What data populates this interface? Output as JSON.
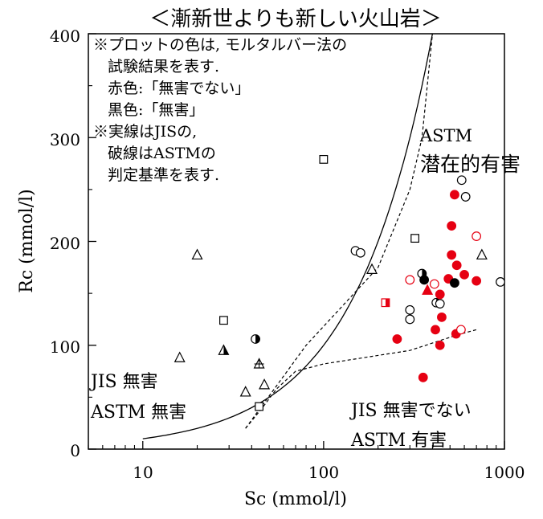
{
  "chart_data": {
    "type": "scatter",
    "title": "＜漸新世よりも新しい火山岩＞",
    "xlabel": "Sc (mmol/l)",
    "ylabel": "Rc (mmol/l)",
    "x_scale": "log",
    "xlim": [
      5,
      1000
    ],
    "ylim": [
      0,
      400
    ],
    "x_ticks": [
      "10",
      "100",
      "1000"
    ],
    "y_ticks": [
      "0",
      "100",
      "200",
      "300",
      "400"
    ],
    "notes": [
      "※プロットの色は, モルタルバー法の",
      "試験結果を表す.",
      "赤色:「無害でない」",
      "黒色:「無害」",
      "※実線はJISの,",
      "破線はASTMの",
      "判定基準を表す."
    ],
    "region_labels": {
      "jis_harmless": "JIS  無害",
      "astm_harmless": "ASTM  無害",
      "jis_not_harmless": "JIS  無害でない",
      "astm_harmful": "ASTM  有害",
      "astm": "ASTM",
      "astm_potential": "潜在的有害"
    },
    "colors": {
      "red": "#e60012",
      "black": "#000000"
    },
    "jis_line_ends": [
      [
        10,
        10
      ],
      [
        400,
        400
      ]
    ],
    "astm_line": [
      [
        37,
        20
      ],
      [
        45,
        38
      ],
      [
        55,
        58
      ],
      [
        70,
        75
      ],
      [
        100,
        82
      ],
      [
        300,
        95
      ],
      [
        550,
        110
      ],
      [
        700,
        115
      ]
    ],
    "astm_upper": [
      [
        37,
        20
      ],
      [
        80,
        100
      ],
      [
        200,
        175
      ],
      [
        300,
        250
      ],
      [
        350,
        300
      ],
      [
        400,
        400
      ]
    ],
    "points": [
      {
        "x": 16,
        "y": 88,
        "shape": "triangle",
        "fill": "open",
        "color": "black"
      },
      {
        "x": 20,
        "y": 187,
        "shape": "triangle",
        "fill": "open",
        "color": "black"
      },
      {
        "x": 28,
        "y": 95,
        "shape": "triangle",
        "fill": "half",
        "color": "black"
      },
      {
        "x": 28,
        "y": 124,
        "shape": "square",
        "fill": "open",
        "color": "black"
      },
      {
        "x": 42,
        "y": 106,
        "shape": "circle",
        "fill": "half",
        "color": "black"
      },
      {
        "x": 44,
        "y": 82,
        "shape": "triangle",
        "fill": "cross",
        "color": "black"
      },
      {
        "x": 44,
        "y": 41,
        "shape": "square",
        "fill": "open",
        "color": "black"
      },
      {
        "x": 37,
        "y": 55,
        "shape": "triangle",
        "fill": "open",
        "color": "black"
      },
      {
        "x": 47,
        "y": 62,
        "shape": "triangle",
        "fill": "open",
        "color": "black"
      },
      {
        "x": 100,
        "y": 279,
        "shape": "square",
        "fill": "open",
        "color": "black"
      },
      {
        "x": 150,
        "y": 191,
        "shape": "circle",
        "fill": "open",
        "color": "black"
      },
      {
        "x": 160,
        "y": 189,
        "shape": "circle",
        "fill": "open",
        "color": "black"
      },
      {
        "x": 185,
        "y": 173,
        "shape": "triangle",
        "fill": "open",
        "color": "black"
      },
      {
        "x": 220,
        "y": 141,
        "shape": "square",
        "fill": "half",
        "color": "red"
      },
      {
        "x": 300,
        "y": 163,
        "shape": "circle",
        "fill": "open",
        "color": "red"
      },
      {
        "x": 300,
        "y": 134,
        "shape": "circle",
        "fill": "open",
        "color": "black"
      },
      {
        "x": 300,
        "y": 125,
        "shape": "circle",
        "fill": "open",
        "color": "black"
      },
      {
        "x": 320,
        "y": 203,
        "shape": "square",
        "fill": "open",
        "color": "black"
      },
      {
        "x": 255,
        "y": 106,
        "shape": "circle",
        "fill": "filled",
        "color": "red"
      },
      {
        "x": 355,
        "y": 69,
        "shape": "circle",
        "fill": "filled",
        "color": "red"
      },
      {
        "x": 350,
        "y": 169,
        "shape": "circle",
        "fill": "half",
        "color": "black"
      },
      {
        "x": 360,
        "y": 163,
        "shape": "circle",
        "fill": "filled",
        "color": "black"
      },
      {
        "x": 375,
        "y": 153,
        "shape": "triangle",
        "fill": "filled",
        "color": "red"
      },
      {
        "x": 410,
        "y": 159,
        "shape": "circle",
        "fill": "open",
        "color": "red"
      },
      {
        "x": 420,
        "y": 141,
        "shape": "circle",
        "fill": "half",
        "color": "black"
      },
      {
        "x": 440,
        "y": 140,
        "shape": "circle",
        "fill": "open",
        "color": "black"
      },
      {
        "x": 440,
        "y": 149,
        "shape": "circle",
        "fill": "filled",
        "color": "red"
      },
      {
        "x": 450,
        "y": 127,
        "shape": "circle",
        "fill": "filled",
        "color": "red"
      },
      {
        "x": 415,
        "y": 115,
        "shape": "circle",
        "fill": "filled",
        "color": "red"
      },
      {
        "x": 440,
        "y": 100,
        "shape": "circle",
        "fill": "filled",
        "color": "red"
      },
      {
        "x": 490,
        "y": 164,
        "shape": "circle",
        "fill": "filled",
        "color": "red"
      },
      {
        "x": 510,
        "y": 215,
        "shape": "circle",
        "fill": "filled",
        "color": "red"
      },
      {
        "x": 510,
        "y": 187,
        "shape": "circle",
        "fill": "filled",
        "color": "red"
      },
      {
        "x": 530,
        "y": 160,
        "shape": "circle",
        "fill": "filled",
        "color": "black"
      },
      {
        "x": 530,
        "y": 245,
        "shape": "circle",
        "fill": "filled",
        "color": "red"
      },
      {
        "x": 545,
        "y": 177,
        "shape": "circle",
        "fill": "filled",
        "color": "red"
      },
      {
        "x": 540,
        "y": 111,
        "shape": "circle",
        "fill": "filled",
        "color": "red"
      },
      {
        "x": 575,
        "y": 115,
        "shape": "circle",
        "fill": "open",
        "color": "red"
      },
      {
        "x": 580,
        "y": 259,
        "shape": "circle",
        "fill": "open",
        "color": "black"
      },
      {
        "x": 600,
        "y": 168,
        "shape": "circle",
        "fill": "filled",
        "color": "red"
      },
      {
        "x": 610,
        "y": 243,
        "shape": "circle",
        "fill": "open",
        "color": "black"
      },
      {
        "x": 700,
        "y": 205,
        "shape": "circle",
        "fill": "open",
        "color": "red"
      },
      {
        "x": 700,
        "y": 162,
        "shape": "circle",
        "fill": "filled",
        "color": "red"
      },
      {
        "x": 750,
        "y": 187,
        "shape": "triangle",
        "fill": "open",
        "color": "black"
      },
      {
        "x": 950,
        "y": 161,
        "shape": "circle",
        "fill": "open",
        "color": "black"
      }
    ]
  }
}
